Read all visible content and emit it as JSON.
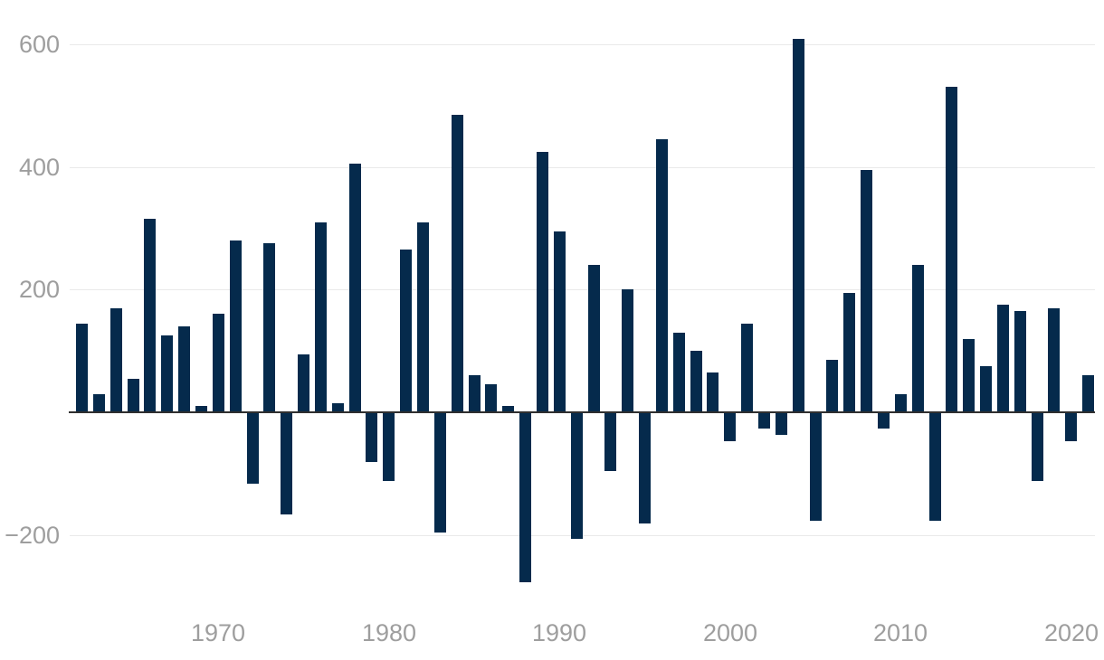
{
  "chart_data": {
    "type": "bar",
    "x": [
      1962,
      1963,
      1964,
      1965,
      1966,
      1967,
      1968,
      1969,
      1970,
      1971,
      1972,
      1973,
      1974,
      1975,
      1976,
      1977,
      1978,
      1979,
      1980,
      1981,
      1982,
      1983,
      1984,
      1985,
      1986,
      1987,
      1988,
      1989,
      1990,
      1991,
      1992,
      1993,
      1994,
      1995,
      1996,
      1997,
      1998,
      1999,
      2000,
      2001,
      2002,
      2003,
      2004,
      2005,
      2006,
      2007,
      2008,
      2009,
      2010,
      2011,
      2012,
      2013,
      2014,
      2015,
      2016,
      2017,
      2018,
      2019,
      2020,
      2021
    ],
    "values": [
      145,
      30,
      170,
      55,
      315,
      125,
      140,
      10,
      160,
      280,
      -115,
      275,
      -165,
      95,
      310,
      15,
      405,
      -80,
      -110,
      265,
      310,
      -195,
      485,
      60,
      45,
      10,
      -275,
      425,
      295,
      -205,
      240,
      -95,
      200,
      -180,
      445,
      130,
      100,
      65,
      -45,
      145,
      -25,
      -35,
      608,
      -175,
      85,
      195,
      395,
      -25,
      30,
      240,
      -175,
      530,
      120,
      75,
      175,
      165,
      -110,
      170,
      -45,
      60
    ],
    "title": "",
    "xlabel": "",
    "ylabel": "",
    "ylim": [
      -300,
      650
    ],
    "xlim": [
      1961,
      2022
    ],
    "grid": "horizontal-only",
    "legend": "none",
    "zero_axis_line": true,
    "y_gridline_values": [
      600,
      400,
      200,
      -200
    ],
    "y_tick_labels": [
      "600",
      "400",
      "200",
      "−200"
    ],
    "x_tick_years": [
      1970,
      1980,
      1990,
      2000,
      2010,
      2020
    ],
    "x_tick_labels": [
      "1970",
      "1980",
      "1990",
      "2000",
      "2010",
      "2020"
    ]
  },
  "colors": {
    "background": "#ffffff",
    "bar": "#052a4c",
    "zero_axis": "#2f2f2f",
    "gridline": "#e9e9e9",
    "tick_label": "#9e9e9e"
  }
}
